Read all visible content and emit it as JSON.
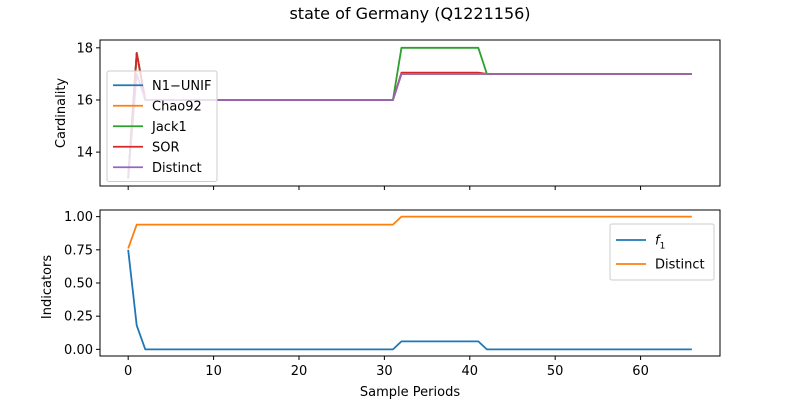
{
  "title": "state of Germany (Q1221156)",
  "chart_data": [
    {
      "type": "line",
      "ylabel": "Cardinality",
      "xlabel": "",
      "xlim": [
        -3.3,
        69.3
      ],
      "ylim": [
        12.7,
        18.3
      ],
      "xticks": [
        0,
        10,
        20,
        30,
        40,
        50,
        60
      ],
      "yticks": [
        14,
        16,
        18
      ],
      "legend_position": "center-left",
      "series": [
        {
          "name": "N1−UNIF",
          "color": "#1f77b4",
          "points": [
            [
              0,
              13
            ],
            [
              1,
              17.8
            ],
            [
              2,
              16
            ],
            [
              31,
              16
            ],
            [
              32,
              17
            ],
            [
              66,
              17
            ]
          ]
        },
        {
          "name": "Chao92",
          "color": "#ff7f0e",
          "points": [
            [
              0,
              13
            ],
            [
              1,
              17.8
            ],
            [
              2,
              16
            ],
            [
              31,
              16
            ],
            [
              32,
              17
            ],
            [
              66,
              17
            ]
          ]
        },
        {
          "name": "Jack1",
          "color": "#2ca02c",
          "points": [
            [
              0,
              13
            ],
            [
              1,
              17.8
            ],
            [
              2,
              16
            ],
            [
              31,
              16
            ],
            [
              32,
              18
            ],
            [
              41,
              18
            ],
            [
              42,
              17
            ],
            [
              66,
              17
            ]
          ]
        },
        {
          "name": "SOR",
          "color": "#d62728",
          "points": [
            [
              0,
              13
            ],
            [
              1,
              17.8
            ],
            [
              2,
              16
            ],
            [
              31,
              16
            ],
            [
              32,
              17.05
            ],
            [
              41,
              17.05
            ],
            [
              42,
              17
            ],
            [
              66,
              17
            ]
          ]
        },
        {
          "name": "Distinct",
          "color": "#9467bd",
          "points": [
            [
              0,
              13
            ],
            [
              1,
              17
            ],
            [
              2,
              16
            ],
            [
              31,
              16
            ],
            [
              32,
              17
            ],
            [
              66,
              17
            ]
          ]
        }
      ]
    },
    {
      "type": "line",
      "ylabel": "Indicators",
      "xlabel": "Sample Periods",
      "xlim": [
        -3.3,
        69.3
      ],
      "ylim": [
        -0.05,
        1.05
      ],
      "xticks": [
        0,
        10,
        20,
        30,
        40,
        50,
        60
      ],
      "yticks": [
        0.0,
        0.25,
        0.5,
        0.75,
        1.0
      ],
      "ytick_labels": [
        "0.00",
        "0.25",
        "0.50",
        "0.75",
        "1.00"
      ],
      "legend_position": "upper right",
      "series": [
        {
          "name": "f1",
          "label_main": "f",
          "label_sub": "1",
          "color": "#1f77b4",
          "points": [
            [
              0,
              0.75
            ],
            [
              1,
              0.18
            ],
            [
              2,
              0
            ],
            [
              31,
              0
            ],
            [
              32,
              0.06
            ],
            [
              41,
              0.06
            ],
            [
              42,
              0
            ],
            [
              66,
              0
            ]
          ]
        },
        {
          "name": "Distinct",
          "color": "#ff7f0e",
          "points": [
            [
              0,
              0.76
            ],
            [
              1,
              0.94
            ],
            [
              31,
              0.94
            ],
            [
              32,
              1.0
            ],
            [
              66,
              1.0
            ]
          ]
        }
      ]
    }
  ]
}
